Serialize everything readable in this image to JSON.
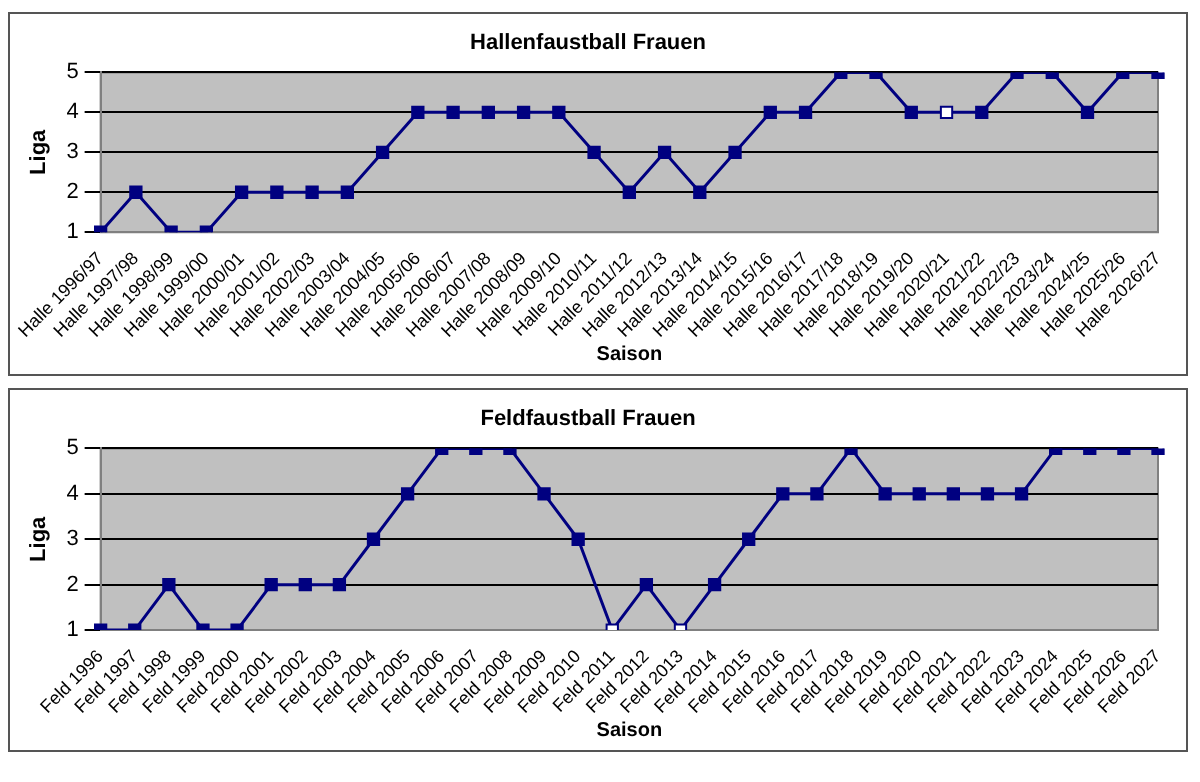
{
  "chart_data": [
    {
      "type": "line",
      "title": "Hallenfaustball Frauen",
      "xlabel": "Saison",
      "ylabel": "Liga",
      "categories": [
        "Halle 1996/97",
        "Halle 1997/98",
        "Halle 1998/99",
        "Halle 1999/00",
        "Halle 2000/01",
        "Halle 2001/02",
        "Halle 2002/03",
        "Halle 2003/04",
        "Halle 2004/05",
        "Halle 2005/06",
        "Halle 2006/07",
        "Halle 2007/08",
        "Halle 2008/09",
        "Halle 2009/10",
        "Halle 2010/11",
        "Halle 2011/12",
        "Halle 2012/13",
        "Halle 2013/14",
        "Halle 2014/15",
        "Halle 2015/16",
        "Halle 2016/17",
        "Halle 2017/18",
        "Halle 2018/19",
        "Halle 2019/20",
        "Halle 2020/21",
        "Halle 2021/22",
        "Halle 2022/23",
        "Halle 2023/24",
        "Halle 2024/25",
        "Halle 2025/26",
        "Halle 2026/27"
      ],
      "series": [
        {
          "color": "#000080",
          "values": [
            1,
            2,
            1,
            1,
            2,
            2,
            2,
            2,
            3,
            4,
            4,
            4,
            4,
            4,
            3,
            2,
            3,
            2,
            3,
            4,
            4,
            5,
            5,
            4,
            4,
            4,
            5,
            5,
            4,
            5,
            5
          ],
          "colors": [
            "#000080",
            "#000080",
            "#000080",
            "#000080",
            "#000080",
            "#000080",
            "#000080",
            "#000080",
            "#000080",
            "#000080",
            "#000080",
            "#000080",
            "#000080",
            "#000080",
            "#000080",
            "#000080",
            "#000080",
            "#000080",
            "#000080",
            "#000080",
            "#000080",
            "#000080",
            "#000080",
            "#000080",
            "#ffffff",
            "#000080",
            "#000080",
            "#000080",
            "#000080",
            "#000080",
            "#000080"
          ]
        }
      ],
      "ylim": [
        1,
        5
      ],
      "yticks": [
        1,
        2,
        3,
        4,
        5
      ],
      "grid": "y",
      "legend": false,
      "marker": "square",
      "line_style": "solid"
    },
    {
      "type": "line",
      "title": "Feldfaustball Frauen",
      "xlabel": "Saison",
      "ylabel": "Liga",
      "categories": [
        "Feld 1996",
        "Feld 1997",
        "Feld 1998",
        "Feld 1999",
        "Feld 2000",
        "Feld 2001",
        "Feld 2002",
        "Feld 2003",
        "Feld 2004",
        "Feld 2005",
        "Feld 2006",
        "Feld 2007",
        "Feld 2008",
        "Feld 2009",
        "Feld 2010",
        "Feld 2011",
        "Feld 2012",
        "Feld 2013",
        "Feld 2014",
        "Feld 2015",
        "Feld 2016",
        "Feld 2017",
        "Feld 2018",
        "Feld 2019",
        "Feld 2020",
        "Feld 2021",
        "Feld 2022",
        "Feld 2023",
        "Feld 2024",
        "Feld 2025",
        "Feld 2026",
        "Feld 2027"
      ],
      "series": [
        {
          "color": "#000080",
          "values": [
            1,
            1,
            2,
            1,
            1,
            2,
            2,
            2,
            3,
            4,
            5,
            5,
            5,
            4,
            3,
            1,
            2,
            1,
            2,
            3,
            4,
            4,
            5,
            4,
            4,
            4,
            4,
            4,
            5,
            5,
            5,
            5
          ],
          "colors": [
            "#000080",
            "#000080",
            "#000080",
            "#000080",
            "#000080",
            "#000080",
            "#000080",
            "#000080",
            "#000080",
            "#000080",
            "#000080",
            "#000080",
            "#000080",
            "#000080",
            "#000080",
            "#ffffff",
            "#000080",
            "#ffffff",
            "#000080",
            "#000080",
            "#000080",
            "#000080",
            "#000080",
            "#000080",
            "#000080",
            "#000080",
            "#000080",
            "#000080",
            "#000080",
            "#000080",
            "#000080",
            "#000080"
          ]
        }
      ],
      "ylim": [
        1,
        5
      ],
      "yticks": [
        1,
        2,
        3,
        4,
        5
      ],
      "grid": "y",
      "legend": false,
      "marker": "square",
      "line_style": "solid"
    }
  ]
}
